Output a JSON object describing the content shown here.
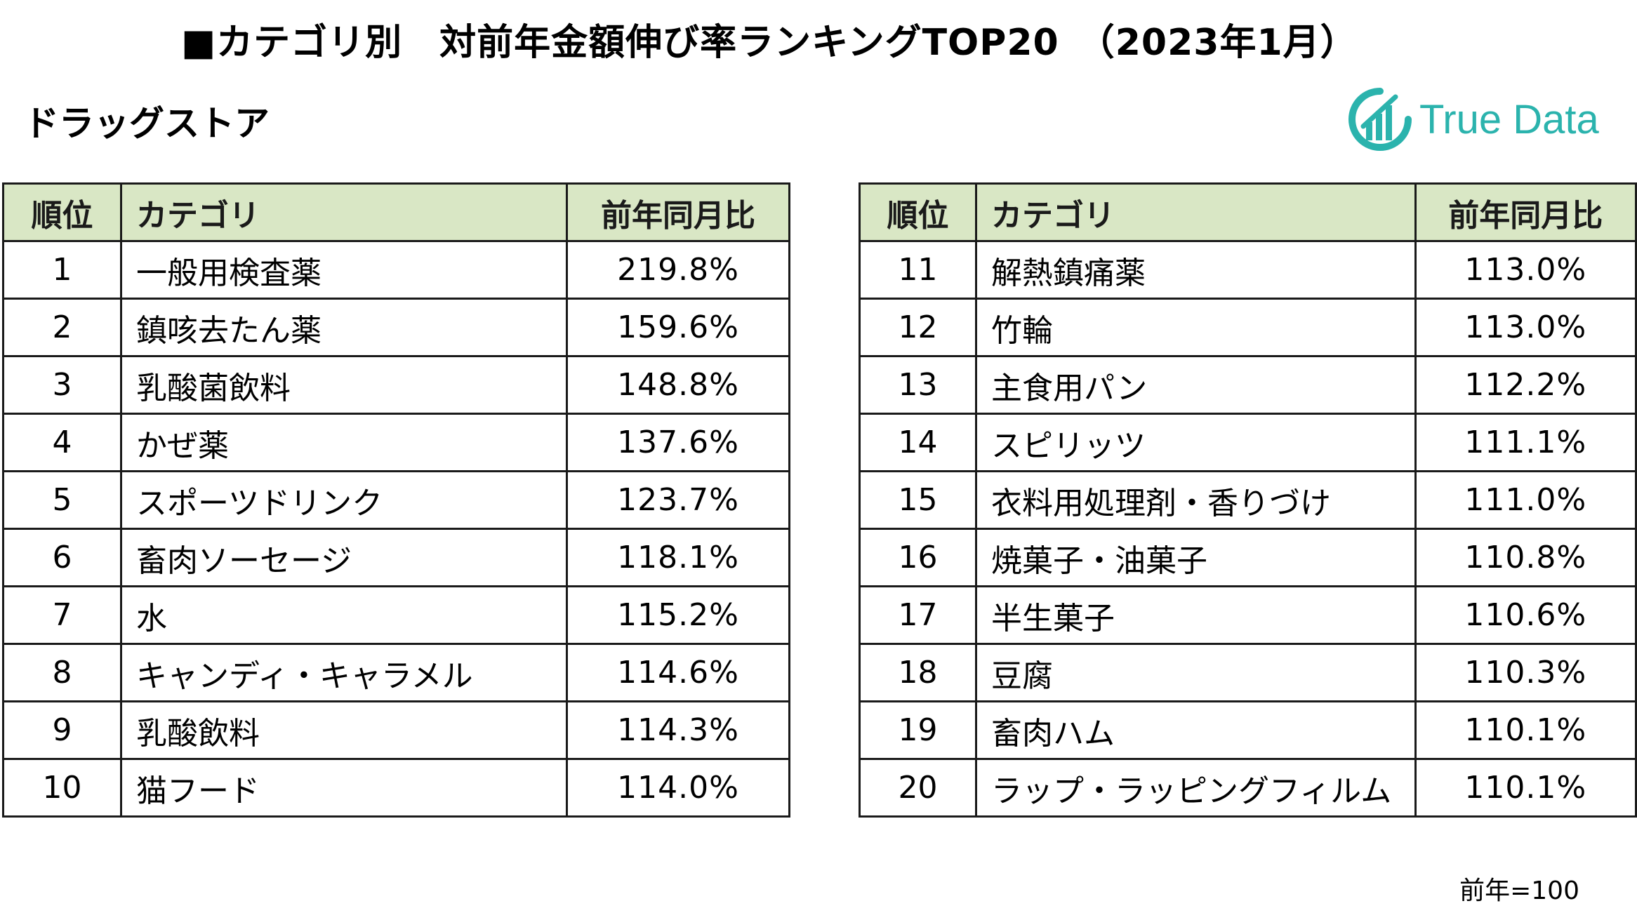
{
  "title": "■カテゴリ別　対前年金額伸び率ランキングTOP20　（2023年1月）",
  "subtitle": "ドラッグストア",
  "logo": {
    "text": "True Data",
    "icon": "bar-chart-circle-icon",
    "color": "#2bb3ad"
  },
  "headers": {
    "rank": "順位",
    "category": "カテゴリ",
    "ratio": "前年同月比"
  },
  "header_bg": "#d9e7c5",
  "rows_left": [
    {
      "rank": "1",
      "category": "一般用検査薬",
      "ratio": "219.8%"
    },
    {
      "rank": "2",
      "category": "鎮咳去たん薬",
      "ratio": "159.6%"
    },
    {
      "rank": "3",
      "category": "乳酸菌飲料",
      "ratio": "148.8%"
    },
    {
      "rank": "4",
      "category": "かぜ薬",
      "ratio": "137.6%"
    },
    {
      "rank": "5",
      "category": "スポーツドリンク",
      "ratio": "123.7%"
    },
    {
      "rank": "6",
      "category": "畜肉ソーセージ",
      "ratio": "118.1%"
    },
    {
      "rank": "7",
      "category": "水",
      "ratio": "115.2%"
    },
    {
      "rank": "8",
      "category": "キャンディ・キャラメル",
      "ratio": "114.6%"
    },
    {
      "rank": "9",
      "category": "乳酸飲料",
      "ratio": "114.3%"
    },
    {
      "rank": "10",
      "category": "猫フード",
      "ratio": "114.0%"
    }
  ],
  "rows_right": [
    {
      "rank": "11",
      "category": "解熱鎮痛薬",
      "ratio": "113.0%"
    },
    {
      "rank": "12",
      "category": "竹輪",
      "ratio": "113.0%"
    },
    {
      "rank": "13",
      "category": "主食用パン",
      "ratio": "112.2%"
    },
    {
      "rank": "14",
      "category": "スピリッツ",
      "ratio": "111.1%"
    },
    {
      "rank": "15",
      "category": "衣料用処理剤・香りづけ",
      "ratio": "111.0%"
    },
    {
      "rank": "16",
      "category": "焼菓子・油菓子",
      "ratio": "110.8%"
    },
    {
      "rank": "17",
      "category": "半生菓子",
      "ratio": "110.6%"
    },
    {
      "rank": "18",
      "category": "豆腐",
      "ratio": "110.3%"
    },
    {
      "rank": "19",
      "category": "畜肉ハム",
      "ratio": "110.1%"
    },
    {
      "rank": "20",
      "category": "ラップ・ラッピングフィルム",
      "ratio": "110.1%"
    }
  ],
  "note": "前年=100"
}
